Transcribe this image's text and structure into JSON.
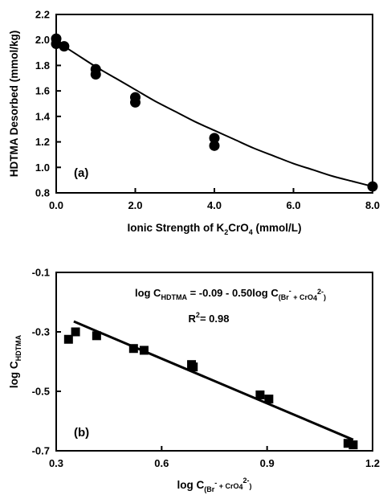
{
  "chart_data": [
    {
      "type": "scatter",
      "panel_label": "(a)",
      "xlabel": {
        "main": "Ionic Strength of K",
        "sub1": "2",
        "mid": "CrO",
        "sub2": "4",
        "unit": " (mmol/L)"
      },
      "ylabel": "HDTMA Desorbed (mmol/kg)",
      "xlim": [
        0,
        8
      ],
      "ylim": [
        0.8,
        2.2
      ],
      "xticks": [
        "0.0",
        "2.0",
        "4.0",
        "6.0",
        "8.0"
      ],
      "xtick_values": [
        0,
        2,
        4,
        6,
        8
      ],
      "yticks": [
        "0.8",
        "1.0",
        "1.2",
        "1.4",
        "1.6",
        "1.8",
        "2.0",
        "2.2"
      ],
      "ytick_values": [
        0.8,
        1.0,
        1.2,
        1.4,
        1.6,
        1.8,
        2.0,
        2.2
      ],
      "points": [
        {
          "x": 0.0,
          "y": 2.01
        },
        {
          "x": 0.0,
          "y": 1.97
        },
        {
          "x": 0.2,
          "y": 1.95
        },
        {
          "x": 1.0,
          "y": 1.77
        },
        {
          "x": 1.0,
          "y": 1.73
        },
        {
          "x": 2.0,
          "y": 1.55
        },
        {
          "x": 2.0,
          "y": 1.51
        },
        {
          "x": 4.0,
          "y": 1.23
        },
        {
          "x": 4.0,
          "y": 1.17
        },
        {
          "x": 8.0,
          "y": 0.85
        }
      ],
      "fit_curve": {
        "x": [
          0,
          0.5,
          1,
          1.5,
          2,
          2.5,
          3,
          3.5,
          4,
          4.5,
          5,
          5.5,
          6,
          6.5,
          7,
          7.5,
          8
        ],
        "y": [
          1.99,
          1.89,
          1.79,
          1.7,
          1.61,
          1.52,
          1.44,
          1.36,
          1.29,
          1.22,
          1.15,
          1.09,
          1.03,
          0.98,
          0.93,
          0.89,
          0.85
        ]
      }
    },
    {
      "type": "scatter",
      "panel_label": "(b)",
      "xlabel": {
        "main": "log C",
        "sub": "(Br",
        "sup1": "-",
        "mid": " + CrO",
        "sub2": "4",
        "sup2": "2-",
        "close": ")"
      },
      "ylabel": {
        "main": "log C",
        "sub": "HDTMA"
      },
      "xlim": [
        0.3,
        1.2
      ],
      "ylim": [
        -0.7,
        -0.1
      ],
      "xticks": [
        "0.3",
        "0.6",
        "0.9",
        "1.2"
      ],
      "xtick_values": [
        0.3,
        0.6,
        0.9,
        1.2
      ],
      "yticks": [
        "-0.7",
        "-0.5",
        "-0.3",
        "-0.1"
      ],
      "ytick_values": [
        -0.7,
        -0.5,
        -0.3,
        -0.1
      ],
      "points": [
        {
          "x": 0.335,
          "y": -0.325
        },
        {
          "x": 0.355,
          "y": -0.3
        },
        {
          "x": 0.415,
          "y": -0.313
        },
        {
          "x": 0.52,
          "y": -0.356
        },
        {
          "x": 0.55,
          "y": -0.362
        },
        {
          "x": 0.685,
          "y": -0.41
        },
        {
          "x": 0.69,
          "y": -0.418
        },
        {
          "x": 0.88,
          "y": -0.512
        },
        {
          "x": 0.905,
          "y": -0.526
        },
        {
          "x": 1.13,
          "y": -0.675
        },
        {
          "x": 1.145,
          "y": -0.68
        }
      ],
      "fit_line": {
        "x": [
          0.35,
          1.145
        ],
        "y": [
          -0.265,
          -0.663
        ]
      },
      "annotations": {
        "equation": {
          "lhs": "log C",
          "lhs_sub": "HDTMA",
          "rhs": " = -0.09 - 0.50log C",
          "rhs_sub": "(Br",
          "rhs_sup1": "-",
          "rhs_mid": " + CrO",
          "rhs_sub2": "4",
          "rhs_sup2": "2-",
          "rhs_close": ")"
        },
        "r2": {
          "label": "R",
          "sup": "2",
          "value": "= 0.98"
        }
      }
    }
  ]
}
